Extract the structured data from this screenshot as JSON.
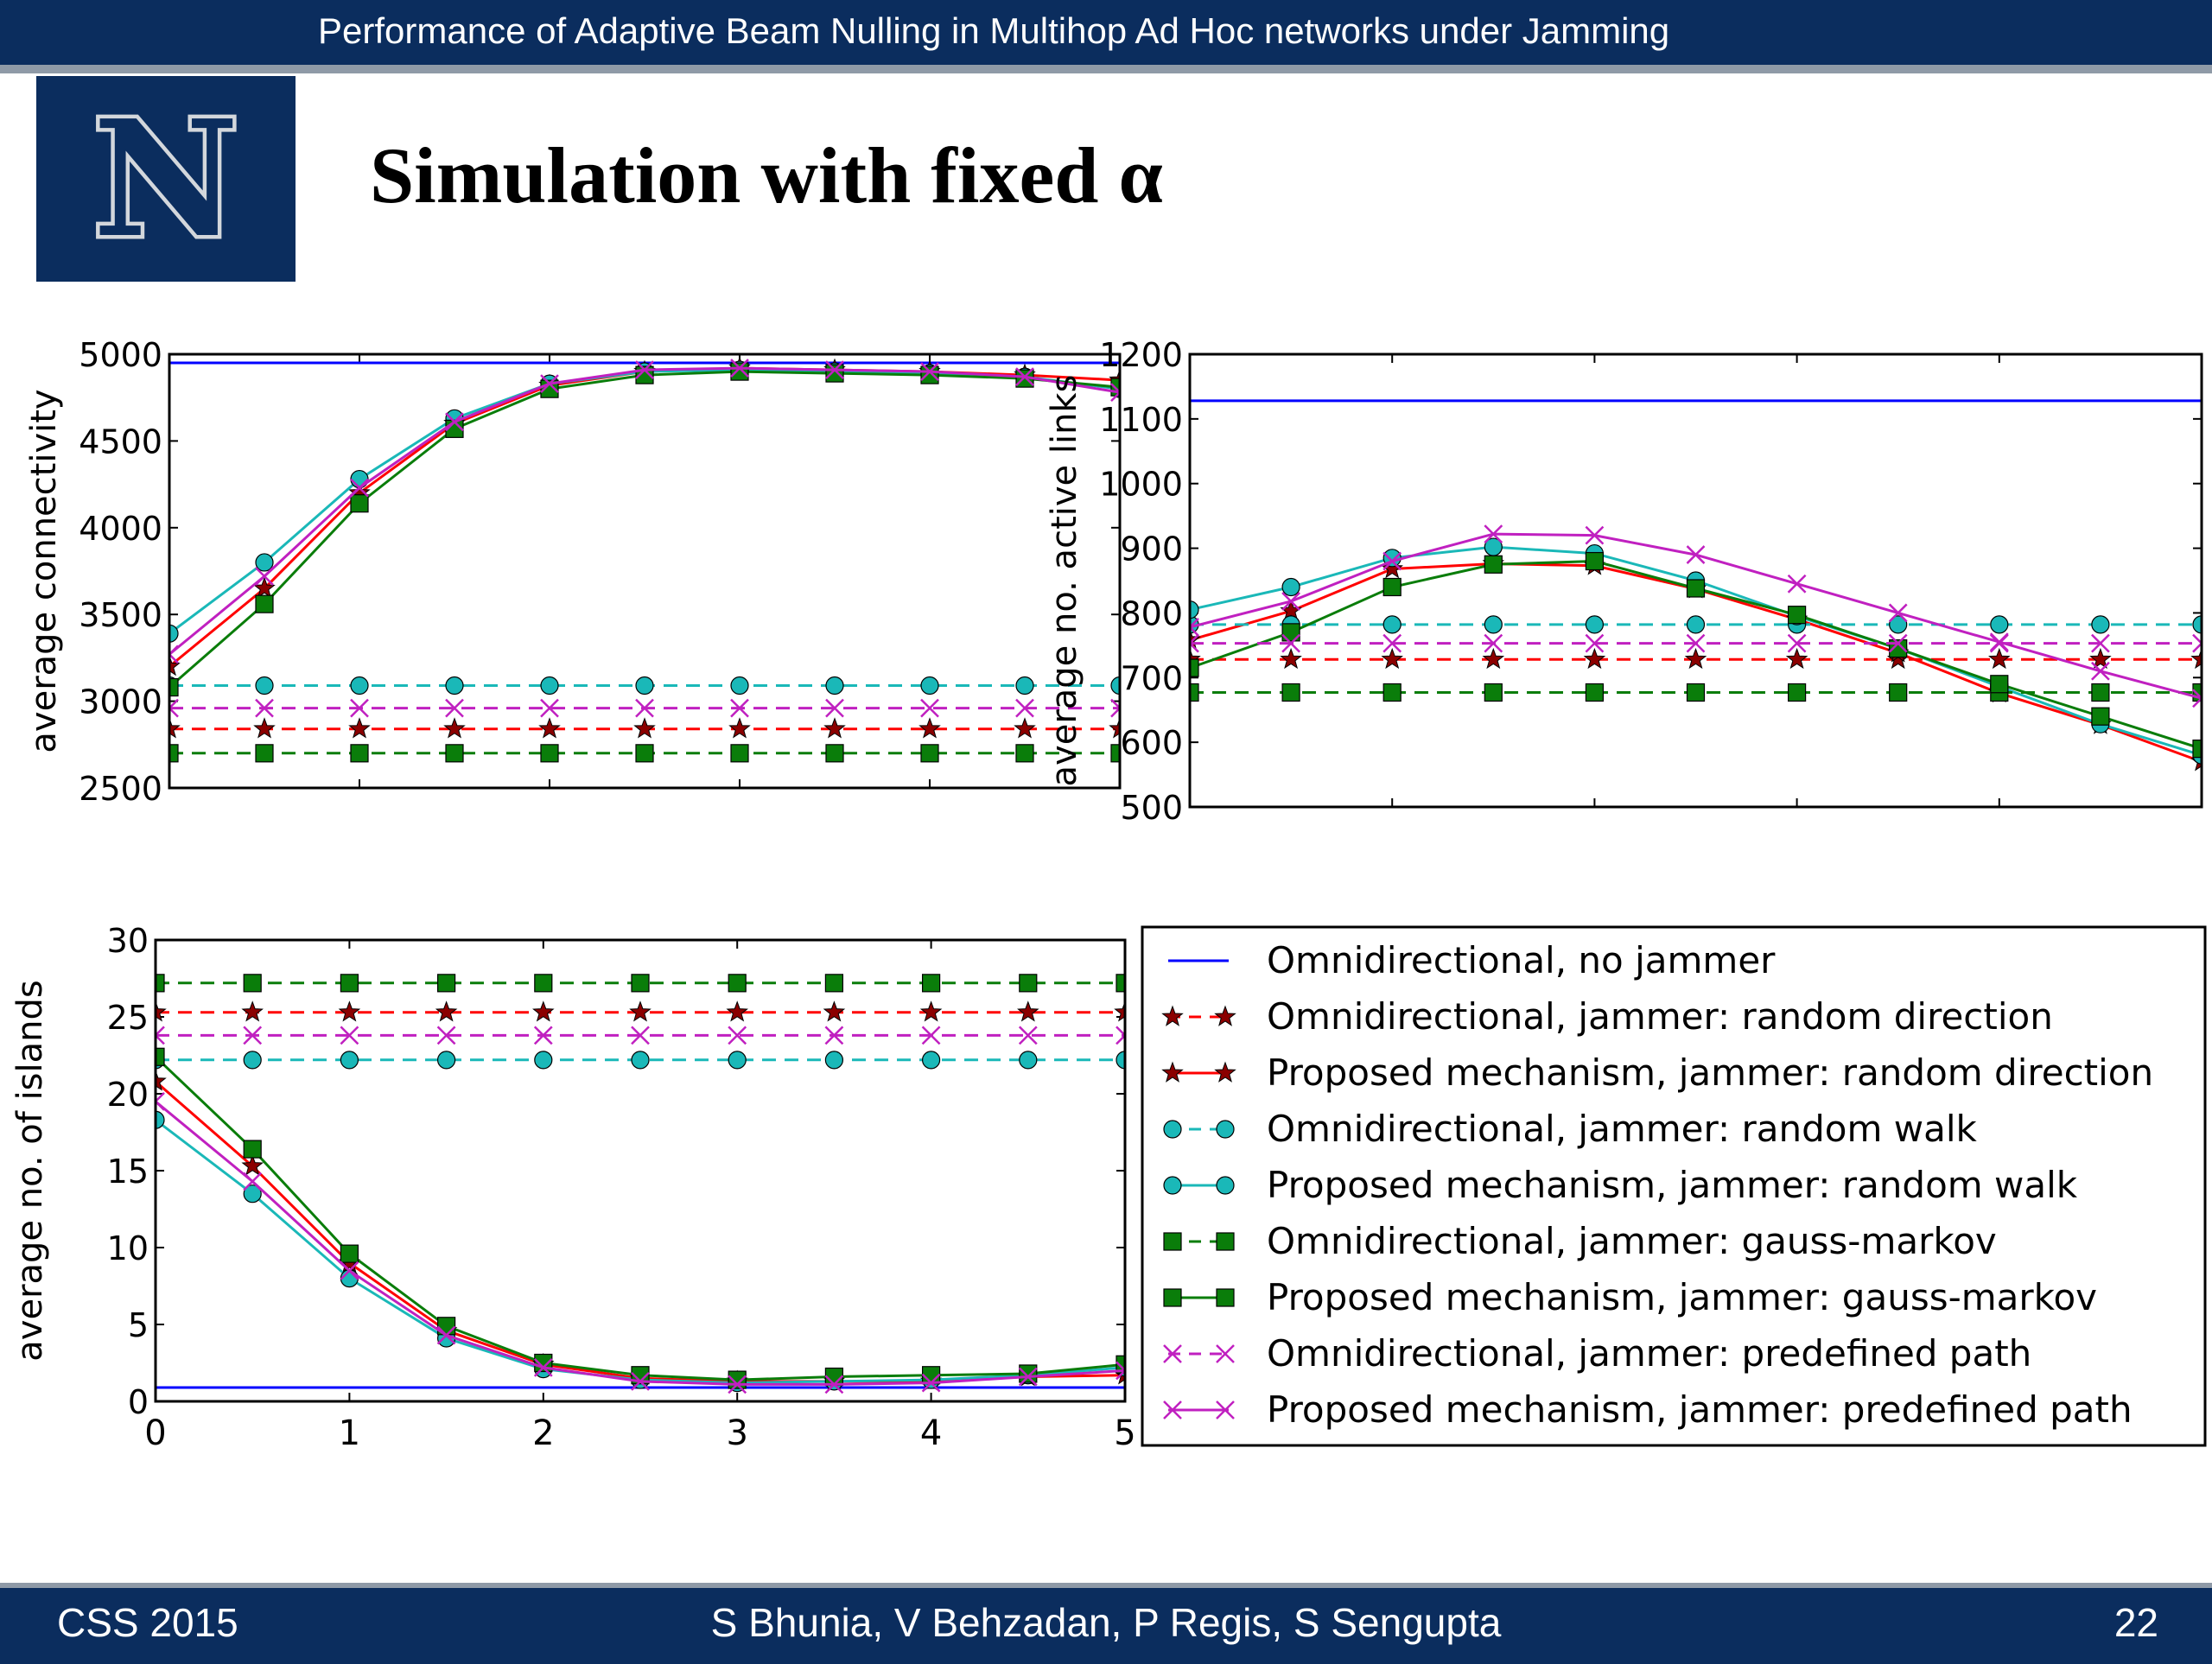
{
  "header": {
    "title": "Performance of Adaptive Beam Nulling in Multihop Ad Hoc networks under Jamming"
  },
  "logo": {
    "letter": "N"
  },
  "slide": {
    "title": "Simulation with fixed α"
  },
  "footer": {
    "left": "CSS 2015",
    "center": "S Bhunia, V Behzadan, P Regis, S Sengupta",
    "right": "22"
  },
  "colors": {
    "header_bg": "#0b2d5e",
    "blue": "#0000ff",
    "red": "#ff0000",
    "dark_red": "#8b0000",
    "cyan": "#1ab8b8",
    "green": "#0a7d0a",
    "magenta": "#c020c0"
  },
  "legend": [
    "Omnidirectional, no jammer",
    "Omnidirectional, jammer: random direction",
    "Proposed mechanism, jammer: random direction",
    "Omnidirectional, jammer: random walk",
    "Proposed mechanism, jammer: random walk",
    "Omnidirectional, jammer: gauss-markov",
    "Proposed mechanism, jammer: gauss-markov",
    "Omnidirectional, jammer: predefined path",
    "Proposed mechanism, jammer: predefined path"
  ],
  "chart_data": [
    {
      "type": "line",
      "ylabel": "average connectivity",
      "xlim": [
        0,
        5
      ],
      "ylim": [
        2500,
        5000
      ],
      "yticks": [
        2500,
        3000,
        3500,
        4000,
        4500,
        5000
      ],
      "x": [
        0,
        0.5,
        1,
        1.5,
        2,
        2.5,
        3,
        3.5,
        4,
        4.5,
        5
      ],
      "series": [
        {
          "name": "Omnidirectional, no jammer",
          "values": [
            4950,
            4950,
            4950,
            4950,
            4950,
            4950,
            4950,
            4950,
            4950,
            4950,
            4950
          ]
        },
        {
          "name": "Omnidirectional, jammer: random direction",
          "values": [
            2840,
            2840,
            2840,
            2840,
            2840,
            2840,
            2840,
            2840,
            2840,
            2840,
            2840
          ]
        },
        {
          "name": "Proposed mechanism, jammer: random direction",
          "values": [
            3200,
            3650,
            4200,
            4600,
            4820,
            4900,
            4920,
            4910,
            4900,
            4880,
            4850
          ]
        },
        {
          "name": "Omnidirectional, jammer: random walk",
          "values": [
            3090,
            3090,
            3090,
            3090,
            3090,
            3090,
            3090,
            3090,
            3090,
            3090,
            3090
          ]
        },
        {
          "name": "Proposed mechanism, jammer: random walk",
          "values": [
            3390,
            3800,
            4280,
            4630,
            4830,
            4900,
            4910,
            4900,
            4890,
            4870,
            4800
          ]
        },
        {
          "name": "Omnidirectional, jammer: gauss-markov",
          "values": [
            2700,
            2700,
            2700,
            2700,
            2700,
            2700,
            2700,
            2700,
            2700,
            2700,
            2700
          ]
        },
        {
          "name": "Proposed mechanism, jammer: gauss-markov",
          "values": [
            3080,
            3560,
            4140,
            4570,
            4800,
            4880,
            4900,
            4890,
            4880,
            4860,
            4810
          ]
        },
        {
          "name": "Omnidirectional, jammer: predefined path",
          "values": [
            2960,
            2960,
            2960,
            2960,
            2960,
            2960,
            2960,
            2960,
            2960,
            2960,
            2960
          ]
        },
        {
          "name": "Proposed mechanism, jammer: predefined path",
          "values": [
            3270,
            3720,
            4230,
            4610,
            4830,
            4910,
            4920,
            4910,
            4900,
            4870,
            4780
          ]
        }
      ]
    },
    {
      "type": "line",
      "ylabel": "average no. active links",
      "xlim": [
        0,
        5
      ],
      "ylim": [
        500,
        1200
      ],
      "yticks": [
        500,
        600,
        700,
        800,
        900,
        1000,
        1100,
        1200
      ],
      "x": [
        0,
        0.5,
        1,
        1.5,
        2,
        2.5,
        3,
        3.5,
        4,
        4.5,
        5
      ],
      "series": [
        {
          "name": "Omnidirectional, no jammer",
          "values": [
            1128,
            1128,
            1128,
            1128,
            1128,
            1128,
            1128,
            1128,
            1128,
            1128,
            1128
          ]
        },
        {
          "name": "Omnidirectional, jammer: random direction",
          "values": [
            728,
            728,
            728,
            728,
            728,
            728,
            728,
            728,
            728,
            728,
            728
          ]
        },
        {
          "name": "Proposed mechanism, jammer: random direction",
          "values": [
            758,
            803,
            868,
            876,
            873,
            837,
            790,
            738,
            676,
            627,
            570
          ]
        },
        {
          "name": "Omnidirectional, jammer: random walk",
          "values": [
            782,
            782,
            782,
            782,
            782,
            782,
            782,
            782,
            782,
            782,
            782
          ]
        },
        {
          "name": "Proposed mechanism, jammer: random walk",
          "values": [
            805,
            840,
            885,
            902,
            892,
            850,
            795,
            745,
            686,
            628,
            580
          ]
        },
        {
          "name": "Omnidirectional, jammer: gauss-markov",
          "values": [
            677,
            677,
            677,
            677,
            677,
            677,
            677,
            677,
            677,
            677,
            677
          ]
        },
        {
          "name": "Proposed mechanism, jammer: gauss-markov",
          "values": [
            715,
            770,
            840,
            875,
            880,
            838,
            797,
            745,
            690,
            640,
            590
          ]
        },
        {
          "name": "Omnidirectional, jammer: predefined path",
          "values": [
            753,
            753,
            753,
            753,
            753,
            753,
            753,
            753,
            753,
            753,
            753
          ]
        },
        {
          "name": "Proposed mechanism, jammer: predefined path",
          "values": [
            778,
            818,
            880,
            922,
            920,
            890,
            845,
            800,
            755,
            710,
            668
          ]
        }
      ]
    },
    {
      "type": "line",
      "ylabel": "average no. of islands",
      "xlim": [
        0,
        5
      ],
      "ylim": [
        0,
        30
      ],
      "xticks": [
        0,
        1,
        2,
        3,
        4,
        5
      ],
      "yticks": [
        0,
        5,
        10,
        15,
        20,
        25,
        30
      ],
      "x": [
        0,
        0.5,
        1,
        1.5,
        2,
        2.5,
        3,
        3.5,
        4,
        4.5,
        5
      ],
      "series": [
        {
          "name": "Omnidirectional, no jammer",
          "values": [
            0.9,
            0.9,
            0.9,
            0.9,
            0.9,
            0.9,
            0.9,
            0.9,
            0.9,
            0.9,
            0.9
          ]
        },
        {
          "name": "Omnidirectional, jammer: random direction",
          "values": [
            25.3,
            25.3,
            25.3,
            25.3,
            25.3,
            25.3,
            25.3,
            25.3,
            25.3,
            25.3,
            25.3
          ]
        },
        {
          "name": "Proposed mechanism, jammer: random direction",
          "values": [
            20.8,
            15.3,
            9.0,
            4.6,
            2.4,
            1.5,
            1.3,
            1.3,
            1.3,
            1.6,
            1.7
          ]
        },
        {
          "name": "Omnidirectional, jammer: random walk",
          "values": [
            22.2,
            22.2,
            22.2,
            22.2,
            22.2,
            22.2,
            22.2,
            22.2,
            22.2,
            22.2,
            22.2
          ]
        },
        {
          "name": "Proposed mechanism, jammer: random walk",
          "values": [
            18.3,
            13.5,
            8.0,
            4.1,
            2.1,
            1.4,
            1.2,
            1.3,
            1.4,
            1.7,
            2.2
          ]
        },
        {
          "name": "Omnidirectional, jammer: gauss-markov",
          "values": [
            27.2,
            27.2,
            27.2,
            27.2,
            27.2,
            27.2,
            27.2,
            27.2,
            27.2,
            27.2,
            27.2
          ]
        },
        {
          "name": "Proposed mechanism, jammer: gauss-markov",
          "values": [
            22.4,
            16.4,
            9.6,
            4.9,
            2.5,
            1.7,
            1.4,
            1.6,
            1.7,
            1.8,
            2.4
          ]
        },
        {
          "name": "Omnidirectional, jammer: predefined path",
          "values": [
            23.8,
            23.8,
            23.8,
            23.8,
            23.8,
            23.8,
            23.8,
            23.8,
            23.8,
            23.8,
            23.8
          ]
        },
        {
          "name": "Proposed mechanism, jammer: predefined path",
          "values": [
            19.5,
            14.3,
            8.5,
            4.3,
            2.2,
            1.3,
            1.1,
            1.1,
            1.2,
            1.6,
            2.0
          ]
        }
      ]
    }
  ]
}
